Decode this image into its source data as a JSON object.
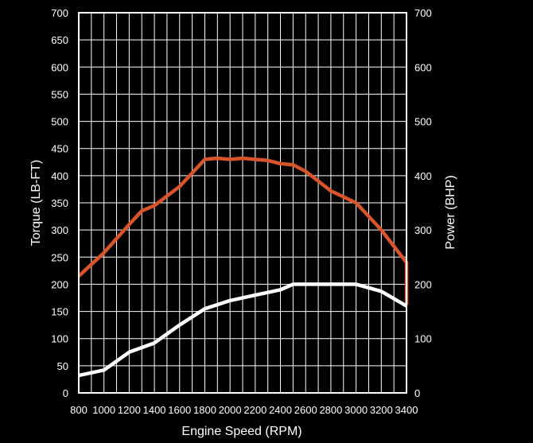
{
  "chart_data": {
    "type": "line",
    "xlabel": "Engine Speed (RPM)",
    "ylabel_left": "Torque (LB-FT)",
    "ylabel_right": "Power (BHP)",
    "xlim": [
      800,
      3400
    ],
    "ylim_left": [
      0,
      700
    ],
    "ylim_right": [
      0,
      700
    ],
    "x_ticks": [
      800,
      1000,
      1200,
      1400,
      1600,
      1800,
      2000,
      2200,
      2400,
      2600,
      2800,
      3000,
      3200,
      3400
    ],
    "y_ticks_left": [
      0,
      50,
      100,
      150,
      200,
      250,
      300,
      350,
      400,
      450,
      500,
      550,
      600,
      650,
      700
    ],
    "y_ticks_right": [
      0,
      100,
      200,
      300,
      400,
      500,
      600,
      700
    ],
    "grid": true,
    "background": "#000000",
    "series": [
      {
        "axis": "left",
        "color": "#d9542b",
        "x": [
          800,
          1000,
          1200,
          1300,
          1400,
          1600,
          1800,
          1900,
          2000,
          2100,
          2200,
          2300,
          2400,
          2500,
          2600,
          2800,
          3000,
          3200,
          3400,
          3400
        ],
        "values": [
          215,
          258,
          310,
          335,
          345,
          380,
          430,
          432,
          430,
          432,
          430,
          428,
          422,
          420,
          408,
          372,
          350,
          300,
          240,
          162
        ]
      },
      {
        "axis": "right",
        "color": "#ffffff",
        "x": [
          800,
          1000,
          1200,
          1400,
          1600,
          1800,
          2000,
          2200,
          2400,
          2500,
          2600,
          2800,
          3000,
          3200,
          3400
        ],
        "values": [
          32,
          42,
          75,
          92,
          125,
          155,
          170,
          180,
          190,
          200,
          200,
          200,
          200,
          187,
          160
        ]
      }
    ]
  }
}
